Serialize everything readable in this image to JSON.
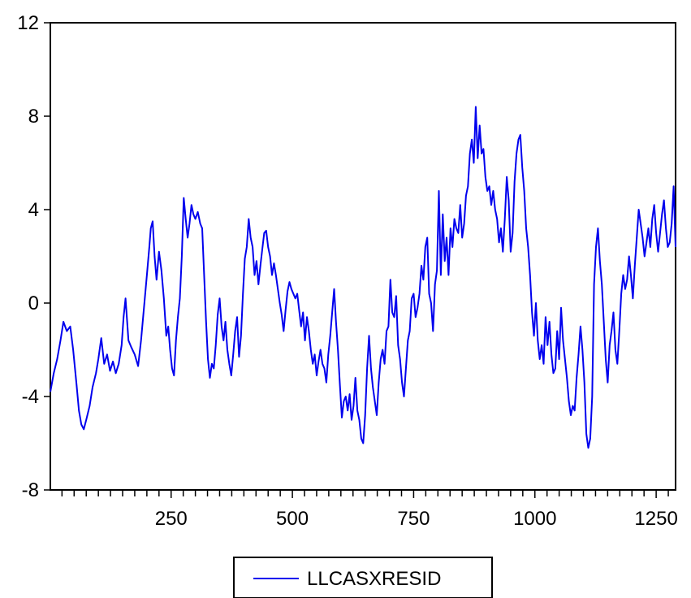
{
  "chart_data": {
    "type": "line",
    "title": "",
    "xlabel": "",
    "ylabel": "",
    "xlim": [
      1,
      1290
    ],
    "ylim": [
      -8,
      12
    ],
    "x_ticks": [
      250,
      500,
      750,
      1000,
      1250
    ],
    "x_tick_labels": [
      "250",
      "500",
      "750",
      "1000",
      "1250"
    ],
    "y_ticks": [
      -8,
      -4,
      0,
      4,
      8,
      12
    ],
    "y_tick_labels": [
      "-8",
      "-4",
      "0",
      "4",
      "8",
      "12"
    ],
    "grid": false,
    "legend_position": "bottom-center",
    "colors": {
      "series": "#0000ee",
      "axis": "#000000"
    },
    "series": [
      {
        "name": "LLCASXRESID",
        "points": [
          [
            1,
            -3.8
          ],
          [
            8,
            -3.0
          ],
          [
            15,
            -2.4
          ],
          [
            22,
            -1.6
          ],
          [
            28,
            -0.8
          ],
          [
            35,
            -1.2
          ],
          [
            42,
            -1.0
          ],
          [
            48,
            -2.0
          ],
          [
            55,
            -3.5
          ],
          [
            60,
            -4.6
          ],
          [
            65,
            -5.2
          ],
          [
            70,
            -5.4
          ],
          [
            75,
            -5.0
          ],
          [
            82,
            -4.4
          ],
          [
            88,
            -3.6
          ],
          [
            95,
            -3.0
          ],
          [
            100,
            -2.4
          ],
          [
            106,
            -1.5
          ],
          [
            112,
            -2.6
          ],
          [
            118,
            -2.2
          ],
          [
            124,
            -2.9
          ],
          [
            130,
            -2.5
          ],
          [
            136,
            -3.0
          ],
          [
            142,
            -2.6
          ],
          [
            148,
            -1.8
          ],
          [
            152,
            -0.6
          ],
          [
            156,
            0.2
          ],
          [
            162,
            -1.6
          ],
          [
            168,
            -1.9
          ],
          [
            175,
            -2.2
          ],
          [
            182,
            -2.7
          ],
          [
            188,
            -1.6
          ],
          [
            194,
            -0.2
          ],
          [
            200,
            1.2
          ],
          [
            205,
            2.4
          ],
          [
            208,
            3.2
          ],
          [
            212,
            3.5
          ],
          [
            216,
            2.0
          ],
          [
            220,
            1.0
          ],
          [
            225,
            2.2
          ],
          [
            230,
            1.4
          ],
          [
            235,
            0.2
          ],
          [
            240,
            -1.4
          ],
          [
            244,
            -1.0
          ],
          [
            248,
            -2.0
          ],
          [
            252,
            -2.8
          ],
          [
            256,
            -3.1
          ],
          [
            260,
            -1.6
          ],
          [
            264,
            -0.6
          ],
          [
            268,
            0.2
          ],
          [
            272,
            2.0
          ],
          [
            276,
            4.5
          ],
          [
            280,
            3.6
          ],
          [
            284,
            2.8
          ],
          [
            288,
            3.4
          ],
          [
            292,
            4.2
          ],
          [
            296,
            3.8
          ],
          [
            300,
            3.6
          ],
          [
            305,
            3.9
          ],
          [
            310,
            3.4
          ],
          [
            314,
            3.2
          ],
          [
            318,
            1.2
          ],
          [
            322,
            -0.8
          ],
          [
            326,
            -2.4
          ],
          [
            330,
            -3.2
          ],
          [
            334,
            -2.6
          ],
          [
            338,
            -2.8
          ],
          [
            342,
            -1.8
          ],
          [
            346,
            -0.5
          ],
          [
            350,
            0.2
          ],
          [
            354,
            -1.0
          ],
          [
            358,
            -1.6
          ],
          [
            362,
            -0.8
          ],
          [
            366,
            -2.0
          ],
          [
            370,
            -2.6
          ],
          [
            374,
            -3.1
          ],
          [
            378,
            -2.2
          ],
          [
            382,
            -1.2
          ],
          [
            386,
            -0.6
          ],
          [
            390,
            -2.3
          ],
          [
            394,
            -1.4
          ],
          [
            398,
            0.4
          ],
          [
            402,
            1.9
          ],
          [
            406,
            2.4
          ],
          [
            410,
            3.6
          ],
          [
            414,
            2.8
          ],
          [
            418,
            2.4
          ],
          [
            422,
            1.2
          ],
          [
            426,
            1.8
          ],
          [
            430,
            0.8
          ],
          [
            434,
            1.6
          ],
          [
            438,
            2.3
          ],
          [
            442,
            3.0
          ],
          [
            446,
            3.1
          ],
          [
            450,
            2.4
          ],
          [
            454,
            2.0
          ],
          [
            458,
            1.2
          ],
          [
            462,
            1.7
          ],
          [
            466,
            1.2
          ],
          [
            470,
            0.6
          ],
          [
            474,
            0.0
          ],
          [
            478,
            -0.5
          ],
          [
            482,
            -1.2
          ],
          [
            486,
            -0.3
          ],
          [
            490,
            0.5
          ],
          [
            494,
            0.9
          ],
          [
            498,
            0.6
          ],
          [
            502,
            0.4
          ],
          [
            506,
            0.2
          ],
          [
            510,
            0.4
          ],
          [
            514,
            -0.3
          ],
          [
            518,
            -1.0
          ],
          [
            522,
            -0.4
          ],
          [
            526,
            -1.6
          ],
          [
            530,
            -0.6
          ],
          [
            534,
            -1.2
          ],
          [
            538,
            -2.0
          ],
          [
            542,
            -2.6
          ],
          [
            546,
            -2.2
          ],
          [
            550,
            -3.1
          ],
          [
            554,
            -2.5
          ],
          [
            558,
            -2.0
          ],
          [
            562,
            -2.6
          ],
          [
            566,
            -2.8
          ],
          [
            570,
            -3.4
          ],
          [
            574,
            -2.2
          ],
          [
            578,
            -1.4
          ],
          [
            582,
            -0.4
          ],
          [
            586,
            0.6
          ],
          [
            590,
            -0.8
          ],
          [
            594,
            -2.0
          ],
          [
            598,
            -3.5
          ],
          [
            602,
            -4.9
          ],
          [
            606,
            -4.2
          ],
          [
            610,
            -4.0
          ],
          [
            614,
            -4.6
          ],
          [
            618,
            -3.9
          ],
          [
            622,
            -5.0
          ],
          [
            626,
            -4.4
          ],
          [
            630,
            -3.2
          ],
          [
            634,
            -4.6
          ],
          [
            638,
            -5.0
          ],
          [
            642,
            -5.8
          ],
          [
            646,
            -6.0
          ],
          [
            650,
            -4.8
          ],
          [
            654,
            -2.8
          ],
          [
            658,
            -1.4
          ],
          [
            662,
            -2.8
          ],
          [
            666,
            -3.6
          ],
          [
            670,
            -4.2
          ],
          [
            674,
            -4.8
          ],
          [
            678,
            -3.4
          ],
          [
            682,
            -2.4
          ],
          [
            686,
            -2.0
          ],
          [
            690,
            -2.6
          ],
          [
            694,
            -1.2
          ],
          [
            698,
            -1.0
          ],
          [
            702,
            1.0
          ],
          [
            706,
            -0.4
          ],
          [
            710,
            -0.6
          ],
          [
            714,
            0.3
          ],
          [
            718,
            -1.8
          ],
          [
            722,
            -2.4
          ],
          [
            726,
            -3.4
          ],
          [
            730,
            -4.0
          ],
          [
            734,
            -2.8
          ],
          [
            738,
            -1.6
          ],
          [
            742,
            -1.2
          ],
          [
            746,
            0.2
          ],
          [
            750,
            0.4
          ],
          [
            754,
            -0.6
          ],
          [
            758,
            -0.2
          ],
          [
            762,
            0.4
          ],
          [
            766,
            1.6
          ],
          [
            770,
            1.0
          ],
          [
            774,
            2.4
          ],
          [
            778,
            2.8
          ],
          [
            782,
            0.4
          ],
          [
            786,
            0.0
          ],
          [
            790,
            -1.2
          ],
          [
            794,
            0.8
          ],
          [
            798,
            1.4
          ],
          [
            802,
            4.8
          ],
          [
            806,
            1.2
          ],
          [
            810,
            3.8
          ],
          [
            814,
            1.8
          ],
          [
            818,
            2.8
          ],
          [
            822,
            1.2
          ],
          [
            826,
            3.2
          ],
          [
            830,
            2.4
          ],
          [
            834,
            3.6
          ],
          [
            838,
            3.2
          ],
          [
            842,
            3.0
          ],
          [
            846,
            4.2
          ],
          [
            850,
            2.8
          ],
          [
            854,
            3.4
          ],
          [
            858,
            4.6
          ],
          [
            862,
            5.0
          ],
          [
            866,
            6.4
          ],
          [
            870,
            7.0
          ],
          [
            874,
            6.0
          ],
          [
            878,
            8.4
          ],
          [
            882,
            6.2
          ],
          [
            886,
            7.6
          ],
          [
            890,
            6.4
          ],
          [
            894,
            6.6
          ],
          [
            898,
            5.4
          ],
          [
            902,
            4.8
          ],
          [
            906,
            5.0
          ],
          [
            910,
            4.2
          ],
          [
            914,
            4.8
          ],
          [
            918,
            4.0
          ],
          [
            922,
            3.6
          ],
          [
            926,
            2.6
          ],
          [
            930,
            3.2
          ],
          [
            934,
            2.2
          ],
          [
            938,
            3.6
          ],
          [
            942,
            5.4
          ],
          [
            946,
            4.4
          ],
          [
            950,
            2.2
          ],
          [
            954,
            3.0
          ],
          [
            958,
            5.2
          ],
          [
            962,
            6.4
          ],
          [
            966,
            7.0
          ],
          [
            970,
            7.2
          ],
          [
            974,
            5.8
          ],
          [
            978,
            4.8
          ],
          [
            982,
            3.2
          ],
          [
            986,
            2.4
          ],
          [
            990,
            1.2
          ],
          [
            994,
            -0.4
          ],
          [
            998,
            -1.4
          ],
          [
            1002,
            0.0
          ],
          [
            1006,
            -1.6
          ],
          [
            1010,
            -2.4
          ],
          [
            1014,
            -1.8
          ],
          [
            1018,
            -2.6
          ],
          [
            1022,
            -0.6
          ],
          [
            1026,
            -1.8
          ],
          [
            1030,
            -0.8
          ],
          [
            1034,
            -2.2
          ],
          [
            1038,
            -3.0
          ],
          [
            1042,
            -2.8
          ],
          [
            1046,
            -1.2
          ],
          [
            1050,
            -2.4
          ],
          [
            1054,
            -0.2
          ],
          [
            1058,
            -1.6
          ],
          [
            1062,
            -2.4
          ],
          [
            1066,
            -3.2
          ],
          [
            1070,
            -4.2
          ],
          [
            1074,
            -4.8
          ],
          [
            1078,
            -4.4
          ],
          [
            1082,
            -4.6
          ],
          [
            1086,
            -3.2
          ],
          [
            1090,
            -2.2
          ],
          [
            1094,
            -1.0
          ],
          [
            1098,
            -2.0
          ],
          [
            1102,
            -3.4
          ],
          [
            1106,
            -5.6
          ],
          [
            1110,
            -6.2
          ],
          [
            1114,
            -5.8
          ],
          [
            1118,
            -4.0
          ],
          [
            1122,
            0.8
          ],
          [
            1126,
            2.4
          ],
          [
            1130,
            3.2
          ],
          [
            1134,
            1.8
          ],
          [
            1138,
            0.8
          ],
          [
            1142,
            -0.8
          ],
          [
            1146,
            -2.4
          ],
          [
            1150,
            -3.4
          ],
          [
            1154,
            -1.8
          ],
          [
            1158,
            -1.2
          ],
          [
            1162,
            -0.4
          ],
          [
            1166,
            -2.0
          ],
          [
            1170,
            -2.6
          ],
          [
            1174,
            -1.2
          ],
          [
            1178,
            0.4
          ],
          [
            1182,
            1.2
          ],
          [
            1186,
            0.6
          ],
          [
            1190,
            1.0
          ],
          [
            1194,
            2.0
          ],
          [
            1198,
            1.2
          ],
          [
            1202,
            0.2
          ],
          [
            1206,
            1.6
          ],
          [
            1210,
            2.8
          ],
          [
            1214,
            4.0
          ],
          [
            1218,
            3.4
          ],
          [
            1222,
            2.8
          ],
          [
            1226,
            2.0
          ],
          [
            1230,
            2.6
          ],
          [
            1234,
            3.2
          ],
          [
            1238,
            2.4
          ],
          [
            1242,
            3.6
          ],
          [
            1246,
            4.2
          ],
          [
            1250,
            3.0
          ],
          [
            1254,
            2.2
          ],
          [
            1258,
            3.0
          ],
          [
            1262,
            3.8
          ],
          [
            1266,
            4.4
          ],
          [
            1270,
            3.2
          ],
          [
            1274,
            2.4
          ],
          [
            1278,
            2.6
          ],
          [
            1282,
            3.4
          ],
          [
            1286,
            5.0
          ],
          [
            1290,
            2.4
          ]
        ]
      }
    ]
  },
  "legend": {
    "label": "LLCASXRESID"
  }
}
